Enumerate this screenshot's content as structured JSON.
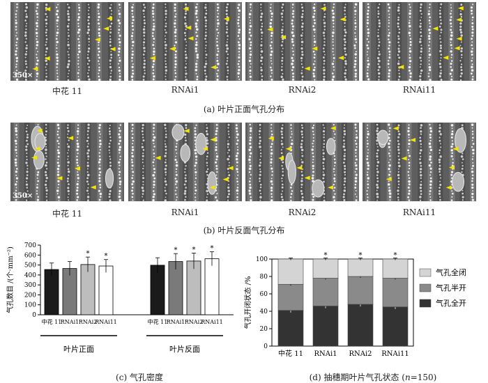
{
  "row_a": {
    "labels": [
      "中花 11",
      "RNAi1",
      "RNAi2",
      "RNAi11"
    ],
    "scale_label": "350×",
    "caption": "(a)  叶片正面气孔分布"
  },
  "row_b": {
    "labels": [
      "中花 11",
      "RNAi1",
      "RNAi2",
      "RNAi11"
    ],
    "scale_label": "350×",
    "caption": "(b)  叶片反面气孔分布"
  },
  "chart_data": [
    {
      "type": "bar",
      "id": "stomatal-density",
      "ylabel": "气孔数目 /(个·mm⁻²)",
      "ylim": [
        0,
        700
      ],
      "yticks": [
        0,
        100,
        200,
        300,
        400,
        500,
        600,
        700
      ],
      "groups": [
        {
          "name": "叶片正面",
          "categories": [
            "中花 11",
            "RNAi1",
            "RNAi2",
            "RNAi11"
          ],
          "values": [
            455,
            465,
            505,
            490
          ],
          "errors": [
            65,
            70,
            75,
            65
          ],
          "significant": [
            "",
            "",
            "*",
            "*"
          ]
        },
        {
          "name": "叶片反面",
          "categories": [
            "中花 11",
            "RNAi1",
            "RNAi2",
            "RNAi11"
          ],
          "values": [
            498,
            535,
            540,
            563
          ],
          "errors": [
            75,
            80,
            80,
            70
          ],
          "significant": [
            "",
            "*",
            "*",
            "*"
          ]
        }
      ],
      "bar_colors": [
        "#1a1a1a",
        "#7a7a7a",
        "#bdbdbd",
        "#ffffff"
      ],
      "caption": "(c)  气孔密度"
    },
    {
      "type": "bar",
      "stacked": true,
      "id": "stomatal-status",
      "ylabel": "气孔开闭状态 /%",
      "ylim": [
        0,
        100
      ],
      "yticks": [
        0,
        20,
        40,
        60,
        80,
        100
      ],
      "categories": [
        "中花 11",
        "RNAi1",
        "RNAi2",
        "RNAi11"
      ],
      "series": [
        {
          "name": "气孔全开",
          "color": "#333333",
          "values": [
            41,
            46,
            48,
            45
          ],
          "errors": [
            2.5,
            2.5,
            2.5,
            2.5
          ],
          "significant": [
            "",
            "*",
            "*",
            "*"
          ]
        },
        {
          "name": "气孔半开",
          "color": "#8a8a8a",
          "values": [
            30,
            32,
            32,
            33
          ],
          "errors": [
            1.5,
            1.5,
            1.5,
            1.5
          ],
          "significant": [
            "",
            "",
            "",
            ""
          ]
        },
        {
          "name": "气孔全闭",
          "color": "#d4d4d4",
          "values": [
            29,
            22,
            20,
            22
          ],
          "errors": [
            1.2,
            1.2,
            1.2,
            1.2
          ],
          "significant": [
            "",
            "*",
            "*",
            "*"
          ]
        }
      ],
      "legend_order": [
        "气孔全闭",
        "气孔半开",
        "气孔全开"
      ],
      "legend_position": "right",
      "caption_prefix": "(d)  抽穗期叶片气孔状态 (",
      "caption_n": "n",
      "caption_suffix": "=150)"
    }
  ]
}
